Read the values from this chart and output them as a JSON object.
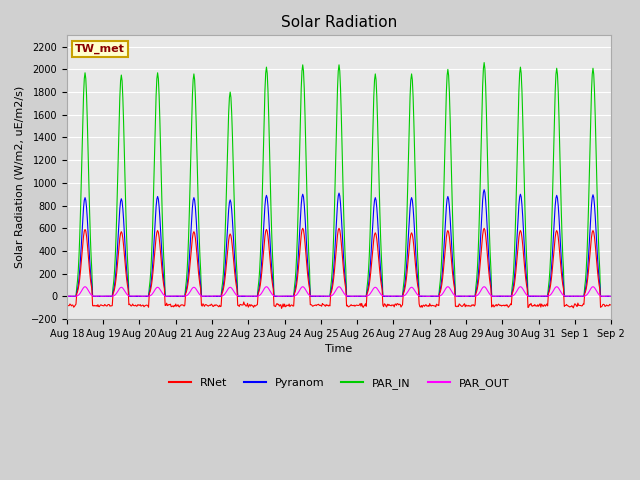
{
  "title": "Solar Radiation",
  "ylabel": "Solar Radiation (W/m2, uE/m2/s)",
  "xlabel": "Time",
  "ylim": [
    -200,
    2300
  ],
  "yticks": [
    -200,
    0,
    200,
    400,
    600,
    800,
    1000,
    1200,
    1400,
    1600,
    1800,
    2000,
    2200
  ],
  "num_days": 15,
  "xtick_labels": [
    "Aug 18",
    "Aug 19",
    "Aug 20",
    "Aug 21",
    "Aug 22",
    "Aug 23",
    "Aug 24",
    "Aug 25",
    "Aug 26",
    "Aug 27",
    "Aug 28",
    "Aug 29",
    "Aug 30",
    "Aug 31",
    "Sep 1",
    "Sep 2"
  ],
  "series_colors": {
    "RNet": "#ff0000",
    "Pyranom": "#0000ff",
    "PAR_IN": "#00cc00",
    "PAR_OUT": "#ff00ff"
  },
  "legend_label": "TW_met",
  "fig_bg_color": "#d0d0d0",
  "plot_bg_color": "#e8e8e8",
  "title_fontsize": 11,
  "label_fontsize": 8,
  "tick_fontsize": 7,
  "par_in_peaks": [
    1970,
    1950,
    1970,
    1960,
    1800,
    2020,
    2040,
    2040,
    1960,
    1960,
    2000,
    2060,
    2020,
    2010,
    2010
  ],
  "pyranom_peaks": [
    870,
    860,
    880,
    870,
    850,
    890,
    900,
    910,
    870,
    870,
    880,
    940,
    900,
    890,
    895
  ],
  "rnet_peaks": [
    590,
    570,
    580,
    570,
    550,
    590,
    600,
    600,
    560,
    560,
    580,
    600,
    580,
    580,
    580
  ],
  "par_out_peaks": [
    85,
    80,
    80,
    80,
    80,
    85,
    85,
    85,
    80,
    80,
    85,
    85,
    85,
    85,
    85
  ]
}
